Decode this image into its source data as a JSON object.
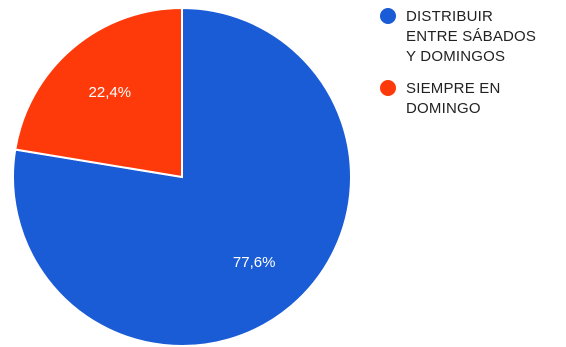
{
  "chart_data": {
    "type": "pie",
    "title": "",
    "categories": [
      "DISTRIBUIR ENTRE SÁBADOS Y DOMINGOS",
      "SIEMPRE EN DOMINGO"
    ],
    "values": [
      77.6,
      22.4
    ],
    "data_labels": [
      "77,6%",
      "22,4%"
    ],
    "colors": [
      "#1a5bd6",
      "#ff3a0a"
    ],
    "legend_placement": "right",
    "legend": {
      "items": [
        {
          "lines": [
            "DISTRIBUIR",
            "ENTRE SÁBADOS",
            "Y DOMINGOS"
          ],
          "color": "#1a5bd6"
        },
        {
          "lines": [
            "SIEMPRE EN",
            "DOMINGO"
          ],
          "color": "#ff3a0a"
        }
      ]
    }
  }
}
